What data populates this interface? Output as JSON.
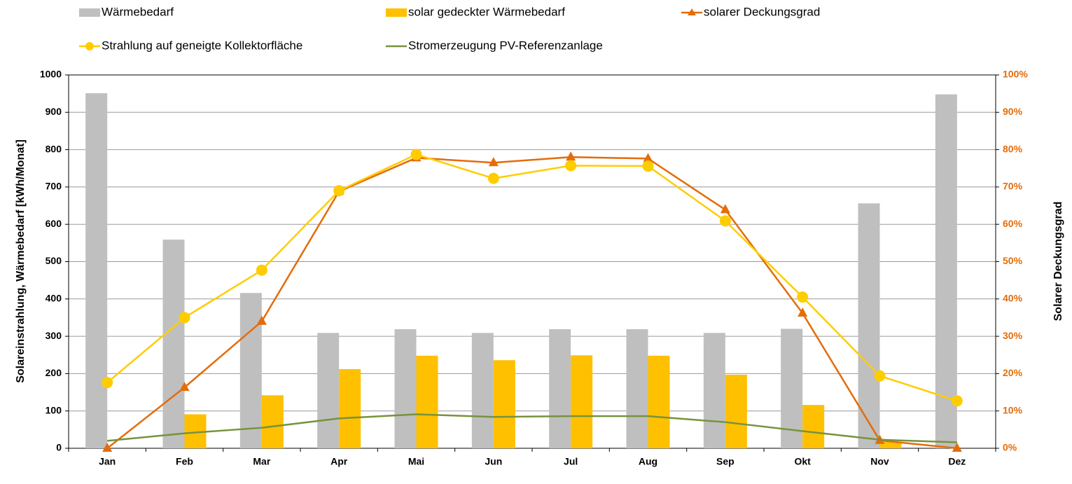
{
  "chart_data": {
    "type": "bar",
    "categories": [
      "Jan",
      "Feb",
      "Mar",
      "Apr",
      "Mai",
      "Jun",
      "Jul",
      "Aug",
      "Sep",
      "Okt",
      "Nov",
      "Dez"
    ],
    "y_label": "Solareinstrahlung, Wärmebedarf [kWh/Monat]",
    "y2_label": "Solarer Deckungsgrad",
    "ylim": [
      0,
      1000
    ],
    "yticks": [
      0,
      100,
      200,
      300,
      400,
      500,
      600,
      700,
      800,
      900,
      1000
    ],
    "y2lim": [
      0,
      100
    ],
    "y2ticks": [
      {
        "value": 0,
        "label": "0%"
      },
      {
        "value": 10,
        "label": "10%"
      },
      {
        "value": 20,
        "label": "20%"
      },
      {
        "value": 30,
        "label": "30%"
      },
      {
        "value": 40,
        "label": "40%"
      },
      {
        "value": 50,
        "label": "50%"
      },
      {
        "value": 60,
        "label": "60%"
      },
      {
        "value": 70,
        "label": "70%"
      },
      {
        "value": 80,
        "label": "80%"
      },
      {
        "value": 90,
        "label": "90%"
      },
      {
        "value": 100,
        "label": "100%"
      }
    ],
    "grid": true,
    "series": [
      {
        "name": "Wärmebedarf",
        "type": "bar",
        "color": "#BFBFBF",
        "values": [
          951,
          559,
          416,
          309,
          319,
          309,
          319,
          319,
          309,
          320,
          656,
          948
        ]
      },
      {
        "name": "solar gedeckter Wärmebedarf",
        "type": "bar",
        "color": "#FFC000",
        "values": [
          0,
          91,
          142,
          212,
          248,
          236,
          249,
          248,
          197,
          116,
          17,
          0
        ]
      },
      {
        "name": "solarer Deckungsgrad",
        "type": "line",
        "marker": "triangle",
        "axis": "y2",
        "color": "#E46C0A",
        "values": [
          0,
          16.3,
          34,
          68.8,
          77.8,
          76.5,
          78,
          77.6,
          63.9,
          36.2,
          2.1,
          0
        ]
      },
      {
        "name": "Strahlung auf geneigte Kollektorfläche",
        "type": "line",
        "marker": "circle",
        "color": "#FFCC00",
        "values": [
          176,
          350,
          477,
          690,
          787,
          723,
          757,
          756,
          609,
          405,
          194,
          127
        ]
      },
      {
        "name": "Stromerzeugung PV-Referenzanlage",
        "type": "line",
        "marker": "none",
        "color": "#77933C",
        "values": [
          20,
          40,
          55,
          80,
          91,
          84,
          86,
          86,
          70,
          46,
          23,
          16
        ]
      }
    ]
  }
}
